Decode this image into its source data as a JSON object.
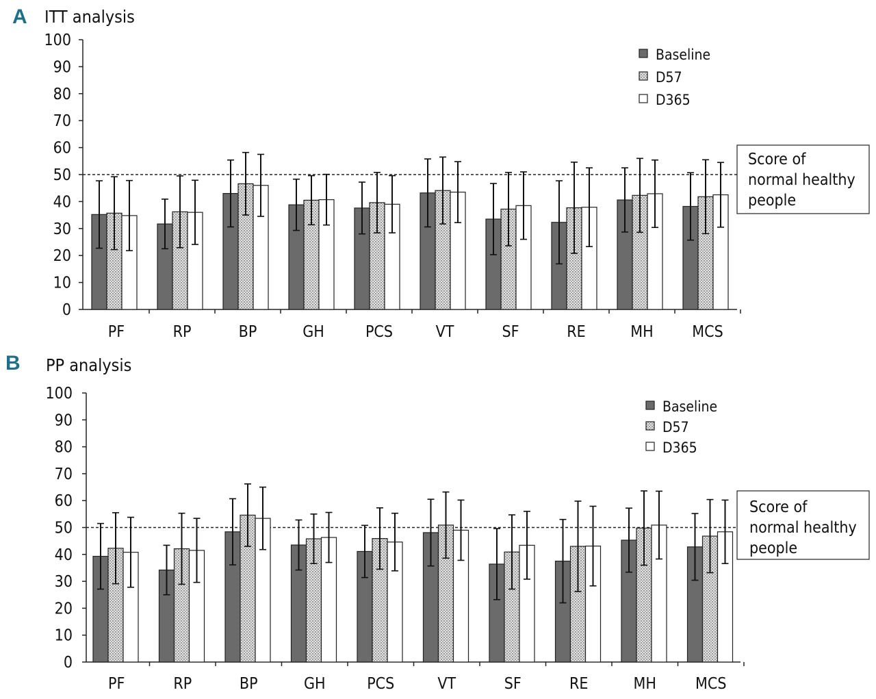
{
  "chart_data": [
    {
      "type": "bar",
      "panel_label": "A",
      "title": "ITT analysis",
      "xlabel": "",
      "ylabel": "",
      "ylim": [
        0,
        100
      ],
      "yticks": [
        0,
        10,
        20,
        30,
        40,
        50,
        60,
        70,
        80,
        90,
        100
      ],
      "categories": [
        "PF",
        "RP",
        "BP",
        "GH",
        "PCS",
        "VT",
        "SF",
        "RE",
        "MH",
        "MCS"
      ],
      "series": [
        {
          "name": "Baseline",
          "values": [
            35.2,
            31.7,
            43.0,
            38.8,
            37.6,
            43.2,
            33.5,
            32.3,
            40.6,
            38.2
          ],
          "errors": [
            12.5,
            9.2,
            12.4,
            9.5,
            9.6,
            12.6,
            13.2,
            15.4,
            11.9,
            12.5
          ]
        },
        {
          "name": "D57",
          "values": [
            35.7,
            36.2,
            46.6,
            40.5,
            39.6,
            44.1,
            37.2,
            37.7,
            42.3,
            41.8
          ],
          "errors": [
            13.5,
            13.3,
            11.6,
            9.1,
            11.2,
            12.4,
            13.6,
            16.9,
            13.7,
            13.7
          ]
        },
        {
          "name": "D365",
          "values": [
            34.8,
            36.0,
            46.0,
            40.7,
            39.0,
            43.5,
            38.5,
            37.9,
            42.9,
            42.5
          ],
          "errors": [
            13.0,
            11.9,
            11.5,
            9.4,
            10.6,
            11.3,
            12.5,
            14.6,
            12.5,
            12.0
          ]
        }
      ],
      "reference_line": {
        "value": 50,
        "label_lines": [
          "Score of",
          "normal healthy",
          "people"
        ]
      },
      "legend": "top-right"
    },
    {
      "type": "bar",
      "panel_label": "B",
      "title": "PP analysis",
      "xlabel": "",
      "ylabel": "",
      "ylim": [
        0,
        100
      ],
      "yticks": [
        0,
        10,
        20,
        30,
        40,
        50,
        60,
        70,
        80,
        90,
        100
      ],
      "categories": [
        "PF",
        "RP",
        "BP",
        "GH",
        "PCS",
        "VT",
        "SF",
        "RE",
        "MH",
        "MCS"
      ],
      "series": [
        {
          "name": "Baseline",
          "values": [
            39.3,
            34.2,
            48.4,
            43.5,
            41.1,
            48.1,
            36.4,
            37.5,
            45.3,
            42.8
          ],
          "errors": [
            12.2,
            9.2,
            12.3,
            9.3,
            9.7,
            12.4,
            13.2,
            15.5,
            11.9,
            12.4
          ]
        },
        {
          "name": "D57",
          "values": [
            42.3,
            42.1,
            54.6,
            45.8,
            45.9,
            50.9,
            40.9,
            43.0,
            49.8,
            46.8
          ],
          "errors": [
            13.2,
            13.2,
            11.6,
            9.2,
            11.4,
            12.3,
            13.8,
            16.8,
            13.8,
            13.6
          ]
        },
        {
          "name": "D365",
          "values": [
            40.8,
            41.5,
            53.4,
            46.3,
            44.6,
            49.0,
            43.4,
            43.1,
            50.9,
            48.4
          ],
          "errors": [
            13.0,
            11.9,
            11.6,
            9.3,
            10.7,
            11.2,
            12.6,
            14.8,
            12.6,
            11.8
          ]
        }
      ],
      "reference_line": {
        "value": 50,
        "label_lines": [
          "Score of",
          "normal healthy",
          "people"
        ]
      },
      "legend": "top-right"
    }
  ]
}
